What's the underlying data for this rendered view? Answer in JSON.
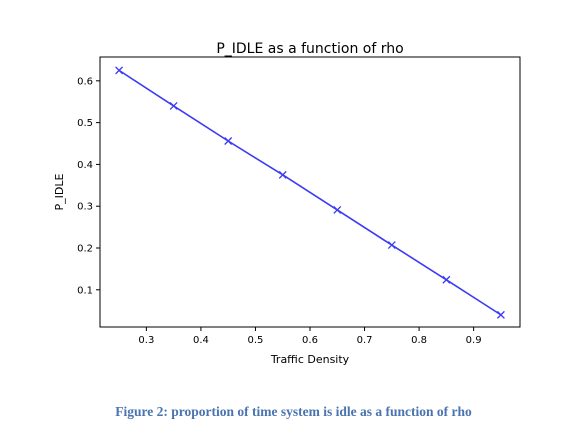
{
  "caption": "Figure 2:  proportion of time system is idle as a function of rho",
  "chart_data": {
    "type": "line",
    "title": "P_IDLE as a function of rho",
    "xlabel": "Traffic Density",
    "ylabel": "P_IDLE",
    "xlim": [
      0.215,
      0.985
    ],
    "ylim": [
      0.011,
      0.657
    ],
    "xticks": [
      0.3,
      0.4,
      0.5,
      0.6,
      0.7,
      0.8,
      0.9
    ],
    "xtick_labels": [
      "0.3",
      "0.4",
      "0.5",
      "0.6",
      "0.7",
      "0.8",
      "0.9"
    ],
    "yticks": [
      0.1,
      0.2,
      0.3,
      0.4,
      0.5,
      0.6
    ],
    "ytick_labels": [
      "0.1",
      "0.2",
      "0.3",
      "0.4",
      "0.5",
      "0.6"
    ],
    "grid": false,
    "series": [
      {
        "marker": "x",
        "color": "#3b3bf5",
        "x": [
          0.25,
          0.35,
          0.45,
          0.55,
          0.65,
          0.75,
          0.85,
          0.95
        ],
        "y": [
          0.625,
          0.54,
          0.456,
          0.375,
          0.291,
          0.207,
          0.124,
          0.04
        ]
      }
    ]
  }
}
